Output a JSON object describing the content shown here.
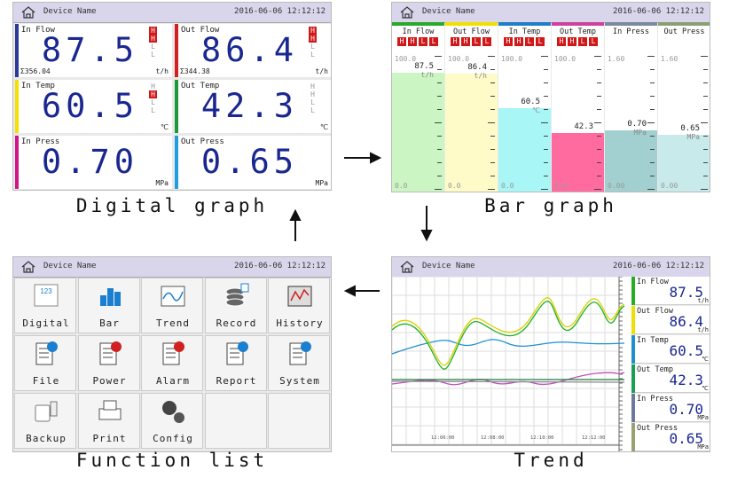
{
  "digital": {
    "header": {
      "device": "Device Name",
      "datetime": "2016-06-06 12:12:12"
    },
    "caption": "Digital graph",
    "cells": [
      {
        "name": "In Flow",
        "value": "87.5",
        "unit": "t/h",
        "total": "Σ356.04",
        "color": "#2a3a9a",
        "alarms": [
          {
            "label": "H",
            "active": true
          },
          {
            "label": "H",
            "active": true
          },
          {
            "label": "L",
            "active": false
          },
          {
            "label": "L",
            "active": false
          }
        ]
      },
      {
        "name": "Out Flow",
        "value": "86.4",
        "unit": "t/h",
        "total": "Σ344.38",
        "color": "#d42020",
        "alarms": [
          {
            "label": "H",
            "active": true
          },
          {
            "label": "H",
            "active": true
          },
          {
            "label": "L",
            "active": false
          },
          {
            "label": "L",
            "active": false
          }
        ]
      },
      {
        "name": "In Temp",
        "value": "60.5",
        "unit": "℃",
        "color": "#f5e000",
        "alarms": [
          {
            "label": "H",
            "active": false
          },
          {
            "label": "H",
            "active": true
          },
          {
            "label": "L",
            "active": false
          },
          {
            "label": "L",
            "active": false
          }
        ]
      },
      {
        "name": "Out Temp",
        "value": "42.3",
        "unit": "℃",
        "color": "#1c9a3a",
        "alarms": [
          {
            "label": "H",
            "active": false
          },
          {
            "label": "H",
            "active": false
          },
          {
            "label": "L",
            "active": false
          },
          {
            "label": "L",
            "active": false
          }
        ]
      },
      {
        "name": "In Press",
        "value": "0.70",
        "unit": "MPa",
        "color": "#d0158a"
      },
      {
        "name": "Out Press",
        "value": "0.65",
        "unit": "MPa",
        "color": "#1ea0e0"
      }
    ]
  },
  "bar": {
    "header": {
      "device": "Device Name",
      "datetime": "2016-06-06 12:12:12"
    },
    "caption": "Bar graph",
    "columns": [
      {
        "name": "In Flow",
        "max": "100.0",
        "min": "0.0",
        "value": "87.5",
        "unit": "t/h",
        "color": "#2aa82a",
        "fill": "#ccf5c4",
        "alarms": [
          "H",
          "H",
          "L",
          "L"
        ]
      },
      {
        "name": "Out Flow",
        "max": "100.0",
        "min": "0.0",
        "value": "86.4",
        "unit": "t/h",
        "color": "#f0e000",
        "fill": "#fffbc8",
        "alarms": [
          "H",
          "H",
          "L",
          "L"
        ]
      },
      {
        "name": "In Temp",
        "max": "100.0",
        "min": "0.0",
        "value": "60.5",
        "unit": "℃",
        "color": "#1e7ec8",
        "fill": "#a8f6f6",
        "alarms": [
          "H",
          "H",
          "L",
          "L"
        ]
      },
      {
        "name": "Out Temp",
        "max": "100.0",
        "min": "0.0",
        "value": "42.3",
        "color": "#d040a0",
        "fill": "#ff6b9e",
        "alarms": [
          "H",
          "H",
          "L",
          "L"
        ]
      },
      {
        "name": "In Press",
        "max": "1.60",
        "min": "0.00",
        "value": "0.70",
        "unit": "MPa",
        "color": "#7a8aa0",
        "fill": "#a2d0d0"
      },
      {
        "name": "Out Press",
        "max": "1.60",
        "min": "0.00",
        "value": "0.65",
        "unit": "MPa",
        "color": "#8aa070",
        "fill": "#c8eaea"
      }
    ]
  },
  "functions": {
    "header": {
      "device": "Device Name",
      "datetime": "2016-06-06 12:12:12"
    },
    "caption": "Function list",
    "items": [
      {
        "label": "Digital",
        "icon_text": "123"
      },
      {
        "label": "Bar"
      },
      {
        "label": "Trend"
      },
      {
        "label": "Record"
      },
      {
        "label": "History"
      },
      {
        "label": "File"
      },
      {
        "label": "Power"
      },
      {
        "label": "Alarm"
      },
      {
        "label": "Report"
      },
      {
        "label": "System"
      },
      {
        "label": "Backup"
      },
      {
        "label": "Print"
      },
      {
        "label": "Config"
      }
    ]
  },
  "trend": {
    "header": {
      "device": "Device Name",
      "datetime": "2016-06-06 12:12:12"
    },
    "caption": "Trend",
    "times": [
      "12:06:00",
      "12:08:00",
      "12:10:00",
      "12:12:00"
    ],
    "channels": [
      {
        "name": "In Flow",
        "value": "87.5",
        "unit": "t/h",
        "color": "#22b022"
      },
      {
        "name": "Out Flow",
        "value": "86.4",
        "unit": "t/h",
        "color": "#f0e000"
      },
      {
        "name": "In Temp",
        "value": "60.5",
        "unit": "℃",
        "color": "#1e90d0"
      },
      {
        "name": "Out Temp",
        "value": "42.3",
        "unit": "℃",
        "color": "#18a050"
      },
      {
        "name": "In Press",
        "value": "0.70",
        "unit": "MPa",
        "color": "#6a7a9a"
      },
      {
        "name": "Out Press",
        "value": "0.65",
        "unit": "MPa",
        "color": "#9aa070"
      }
    ]
  }
}
